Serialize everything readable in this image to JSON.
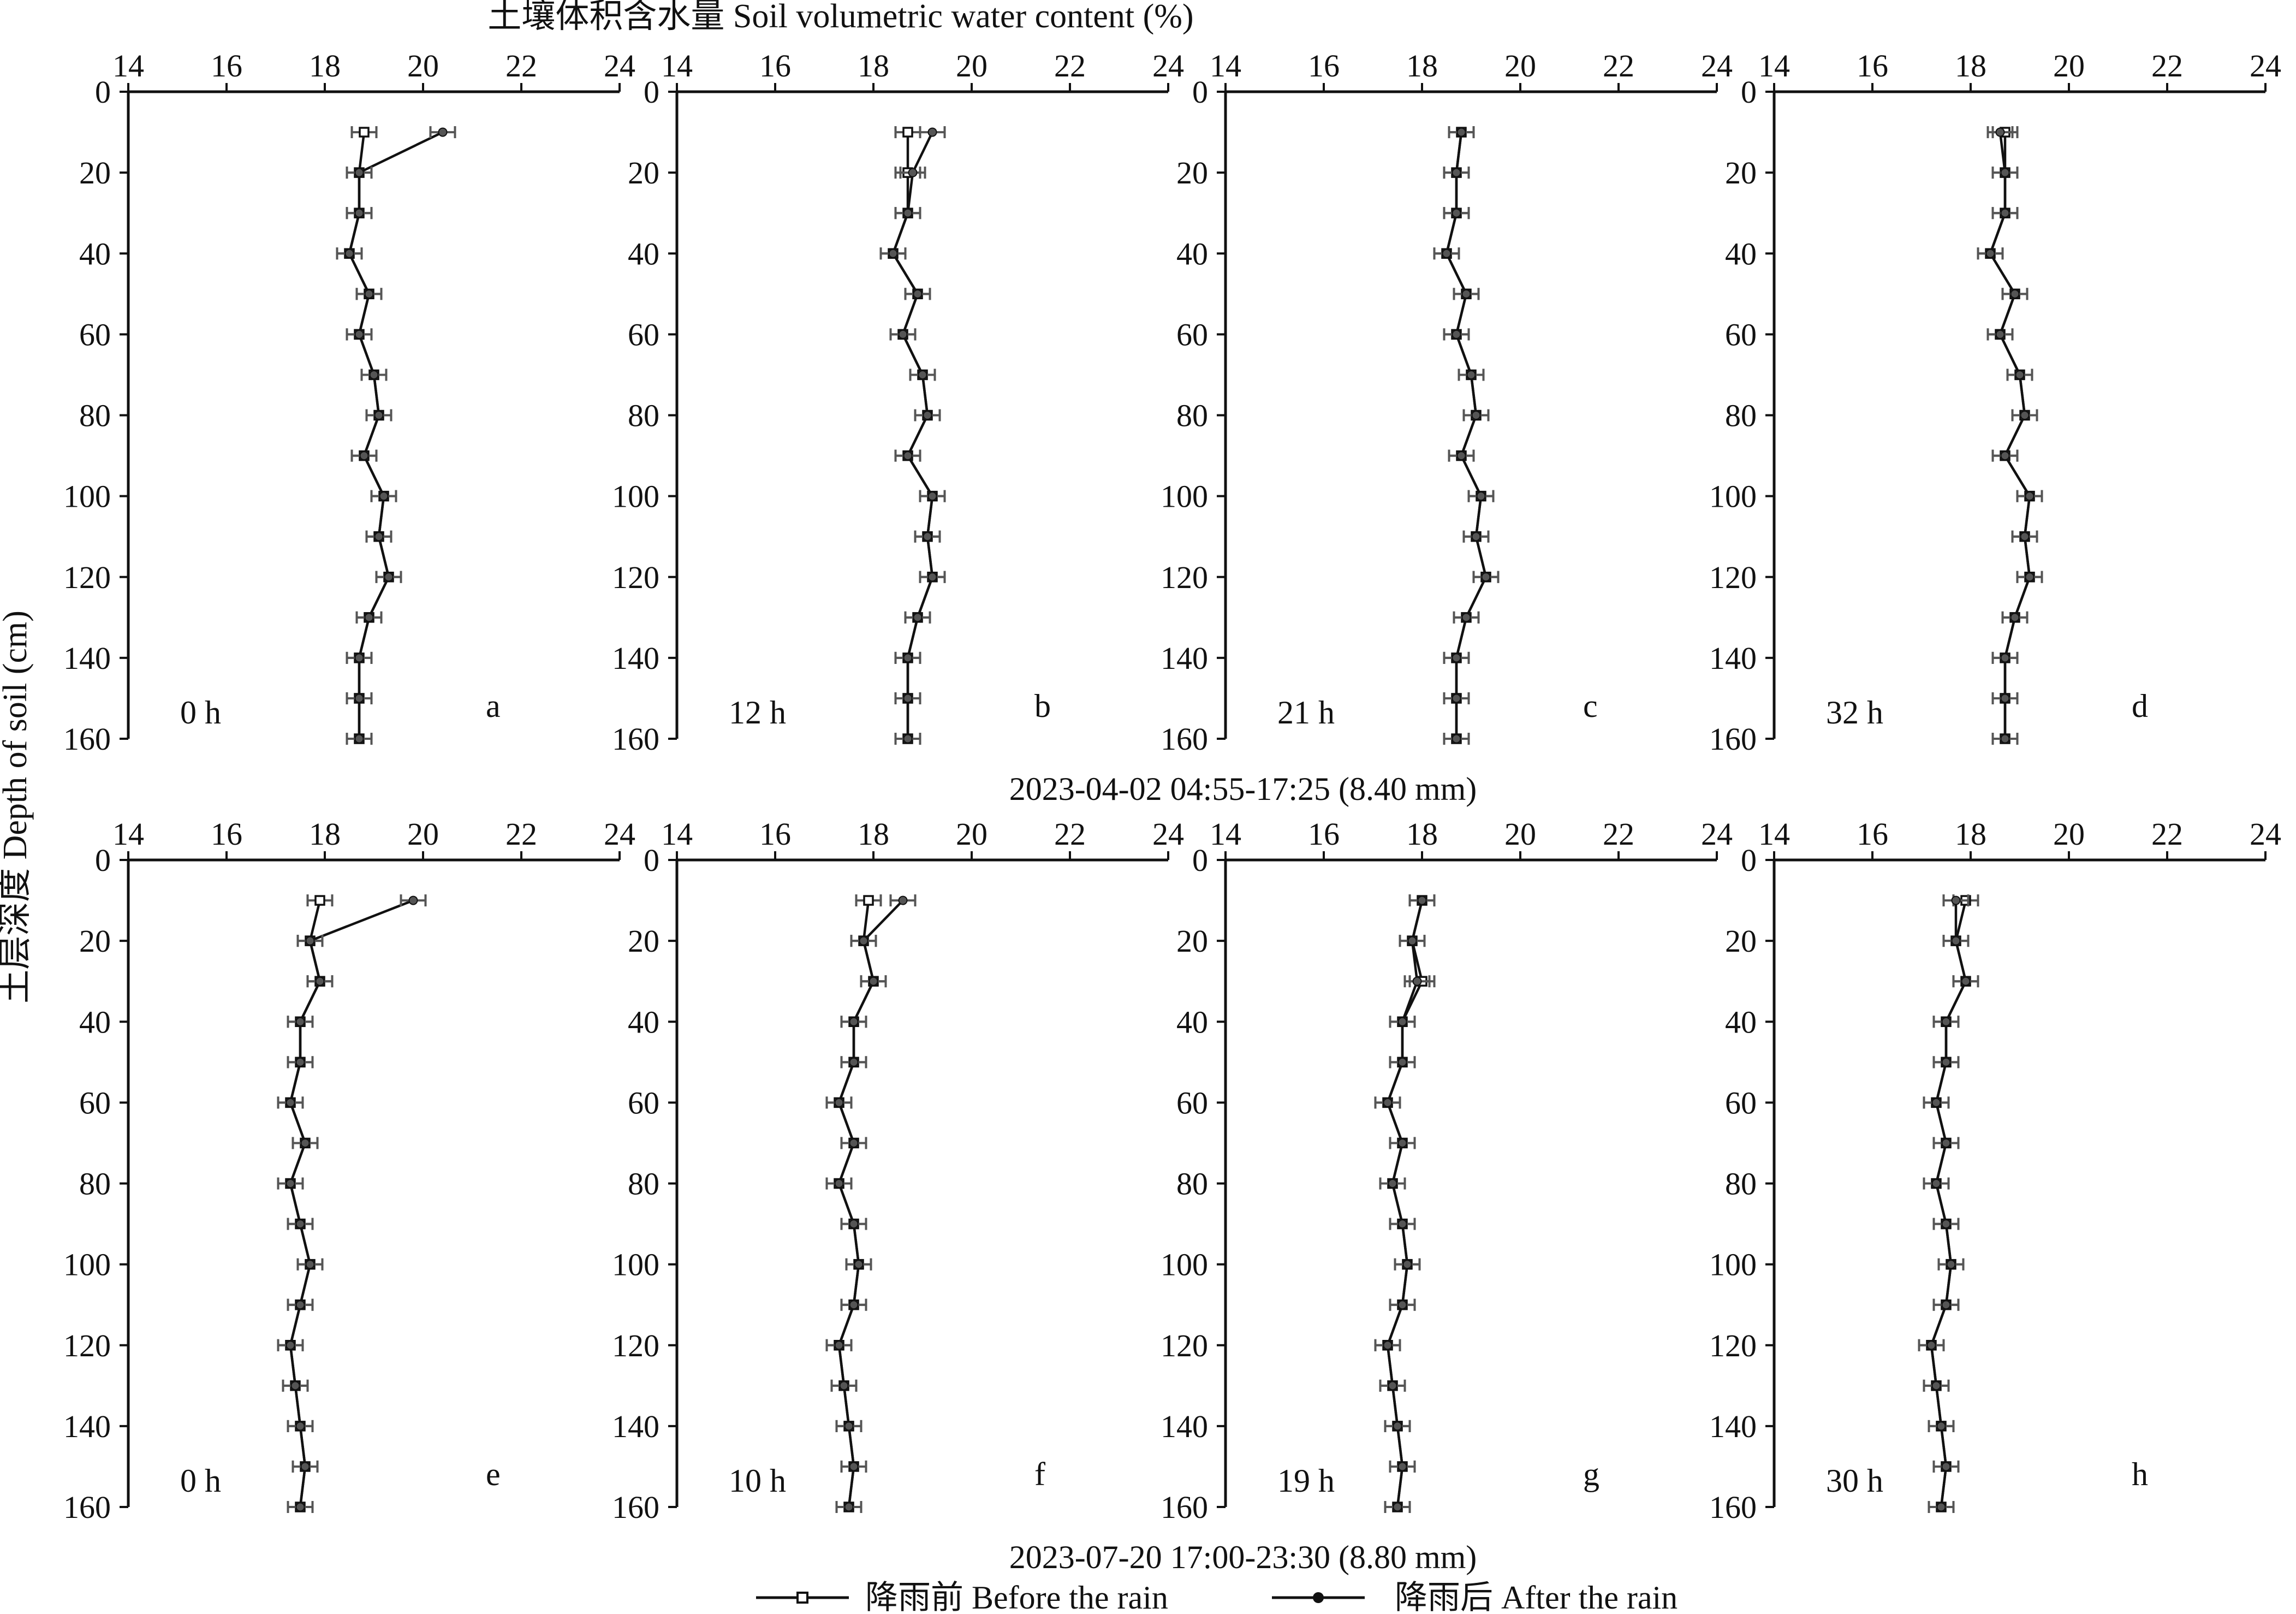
{
  "figure": {
    "top_title": "土壤体积含水量 Soil volumetric water content (%)",
    "y_label": "土层深度 Depth of soil (cm)",
    "row1_caption": "2023-04-02 04:55-17:25 (8.40 mm)",
    "row2_caption": "2023-07-20 17:00-23:30 (8.80 mm)"
  },
  "legend": {
    "before": "降雨前 Before the rain",
    "after": "降雨后 After the rain"
  },
  "chart_data": {
    "type": "line",
    "x_ticks": [
      14,
      16,
      18,
      20,
      22,
      24
    ],
    "y_ticks": [
      0,
      20,
      40,
      60,
      80,
      100,
      120,
      140,
      160
    ],
    "xlim": [
      14,
      24
    ],
    "ylim": [
      0,
      160
    ],
    "depths": [
      10,
      20,
      30,
      40,
      50,
      60,
      70,
      80,
      90,
      100,
      110,
      120,
      130,
      140,
      150,
      160
    ],
    "panels": [
      {
        "letter": "a",
        "time": "0 h",
        "before": [
          18.8,
          18.7,
          18.7,
          18.5,
          18.9,
          18.7,
          19.0,
          19.1,
          18.8,
          19.2,
          19.1,
          19.3,
          18.9,
          18.7,
          18.7,
          18.7
        ],
        "after": [
          20.4,
          18.7,
          18.7,
          18.5,
          18.9,
          18.7,
          19.0,
          19.1,
          18.8,
          19.2,
          19.1,
          19.3,
          18.9,
          18.7,
          18.7,
          18.7
        ]
      },
      {
        "letter": "b",
        "time": "12 h",
        "before": [
          18.7,
          18.7,
          18.7,
          18.4,
          18.9,
          18.6,
          19.0,
          19.1,
          18.7,
          19.2,
          19.1,
          19.2,
          18.9,
          18.7,
          18.7,
          18.7
        ],
        "after": [
          19.2,
          18.8,
          18.7,
          18.4,
          18.9,
          18.6,
          19.0,
          19.1,
          18.7,
          19.2,
          19.1,
          19.2,
          18.9,
          18.7,
          18.7,
          18.7
        ]
      },
      {
        "letter": "c",
        "time": "21 h",
        "before": [
          18.8,
          18.7,
          18.7,
          18.5,
          18.9,
          18.7,
          19.0,
          19.1,
          18.8,
          19.2,
          19.1,
          19.3,
          18.9,
          18.7,
          18.7,
          18.7
        ],
        "after": [
          18.8,
          18.7,
          18.7,
          18.5,
          18.9,
          18.7,
          19.0,
          19.1,
          18.8,
          19.2,
          19.1,
          19.3,
          18.9,
          18.7,
          18.7,
          18.7
        ]
      },
      {
        "letter": "d",
        "time": "32 h",
        "before": [
          18.7,
          18.7,
          18.7,
          18.4,
          18.9,
          18.6,
          19.0,
          19.1,
          18.7,
          19.2,
          19.1,
          19.2,
          18.9,
          18.7,
          18.7,
          18.7
        ],
        "after": [
          18.6,
          18.7,
          18.7,
          18.4,
          18.9,
          18.6,
          19.0,
          19.1,
          18.7,
          19.2,
          19.1,
          19.2,
          18.9,
          18.7,
          18.7,
          18.7
        ]
      },
      {
        "letter": "e",
        "time": "0 h",
        "before": [
          17.9,
          17.7,
          17.9,
          17.5,
          17.5,
          17.3,
          17.6,
          17.3,
          17.5,
          17.7,
          17.5,
          17.3,
          17.4,
          17.5,
          17.6,
          17.5
        ],
        "after": [
          19.8,
          17.7,
          17.9,
          17.5,
          17.5,
          17.3,
          17.6,
          17.3,
          17.5,
          17.7,
          17.5,
          17.3,
          17.4,
          17.5,
          17.6,
          17.5
        ]
      },
      {
        "letter": "f",
        "time": "10 h",
        "before": [
          17.9,
          17.8,
          18.0,
          17.6,
          17.6,
          17.3,
          17.6,
          17.3,
          17.6,
          17.7,
          17.6,
          17.3,
          17.4,
          17.5,
          17.6,
          17.5
        ],
        "after": [
          18.6,
          17.8,
          18.0,
          17.6,
          17.6,
          17.3,
          17.6,
          17.3,
          17.6,
          17.7,
          17.6,
          17.3,
          17.4,
          17.5,
          17.6,
          17.5
        ]
      },
      {
        "letter": "g",
        "time": "19 h",
        "before": [
          18.0,
          17.8,
          18.0,
          17.6,
          17.6,
          17.3,
          17.6,
          17.4,
          17.6,
          17.7,
          17.6,
          17.3,
          17.4,
          17.5,
          17.6,
          17.5
        ],
        "after": [
          18.0,
          17.8,
          17.9,
          17.6,
          17.6,
          17.3,
          17.6,
          17.4,
          17.6,
          17.7,
          17.6,
          17.3,
          17.4,
          17.5,
          17.6,
          17.5
        ]
      },
      {
        "letter": "h",
        "time": "30 h",
        "before": [
          17.9,
          17.7,
          17.9,
          17.5,
          17.5,
          17.3,
          17.5,
          17.3,
          17.5,
          17.6,
          17.5,
          17.2,
          17.3,
          17.4,
          17.5,
          17.4
        ],
        "after": [
          17.7,
          17.7,
          17.9,
          17.5,
          17.5,
          17.3,
          17.5,
          17.3,
          17.5,
          17.6,
          17.5,
          17.2,
          17.3,
          17.4,
          17.5,
          17.4
        ]
      }
    ]
  }
}
